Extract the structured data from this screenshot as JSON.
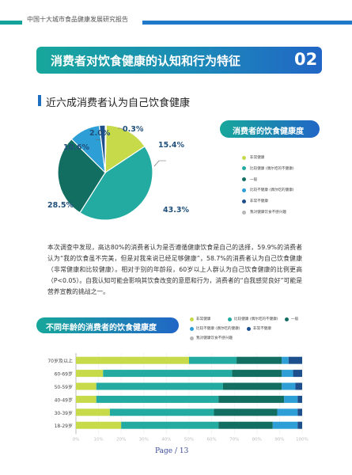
{
  "header": {
    "report_title": "中国十大城市食品健康发展研究报告"
  },
  "section": {
    "title": "消费者对饮食健康的认知和行为特征",
    "number": "02"
  },
  "subheading1": "近六成消费者认为自己饮食健康",
  "legend1": {
    "title": "消费者的饮食健康度",
    "items": [
      {
        "label": "非常健康",
        "color": "#c6da4a"
      },
      {
        "label": "比较健康 (偶尔吃的不健康)",
        "color": "#23aba2"
      },
      {
        "label": "一般",
        "color": "#136e62"
      },
      {
        "label": "比较不健康 (偶尔吃的健康)",
        "color": "#2e9ed6"
      },
      {
        "label": "非常不健康",
        "color": "#1c4f8c"
      },
      {
        "label": "我对健康饮食不感兴趣",
        "color": "#b7b7b7"
      }
    ]
  },
  "pie_labels": [
    "15.4%",
    "43.3%",
    "28.5%",
    "10.6%",
    "2.0%",
    "0.3%"
  ],
  "paragraph": "本次调查中发现，高达80%的消费者认为是否遵循健康饮食是自己的选择，59.9%的消费者认为“我的饮食虽不完美，但是对我来说已经足够健康”，58.7%的消费者认为自己饮食健康（非常健康和比较健康）。相对于别的年龄段，60岁以上人群认为自己饮食健康的比例更高（P<0.05）。自我认知可能会影响其饮食改变的意愿和行为，消费者的“自我感觉良好”可能是营养宣教的挑战之一。",
  "subheading2": "不同年龄的消费者的饮食健康度",
  "bar_legend": [
    {
      "label": "非常健康",
      "color": "#c6da4a"
    },
    {
      "label": "比较健康 (偶尔吃的不健康)",
      "color": "#23aba2"
    },
    {
      "label": "一般",
      "color": "#136e62"
    },
    {
      "label": "比较不健康 (偶尔吃的健康)",
      "color": "#2e9ed6"
    },
    {
      "label": "非常不健康",
      "color": "#1c4f8c"
    },
    {
      "label": "我对健康饮食不感兴趣",
      "color": "#b7b7b7"
    }
  ],
  "page_number": "Page / 13",
  "chart_data": [
    {
      "type": "pie",
      "title": "消费者的饮食健康度",
      "categories": [
        "非常健康",
        "比较健康 (偶尔吃的不健康)",
        "一般",
        "比较不健康 (偶尔吃的健康)",
        "非常不健康",
        "我对健康饮食不感兴趣"
      ],
      "values": [
        15.4,
        43.3,
        28.5,
        10.6,
        2.0,
        0.3
      ],
      "colors": [
        "#c6da4a",
        "#23aba2",
        "#136e62",
        "#2e9ed6",
        "#1c4f8c",
        "#b7b7b7"
      ]
    },
    {
      "type": "bar",
      "orientation": "horizontal",
      "stacked": true,
      "title": "不同年龄的消费者的饮食健康度",
      "categories": [
        "70岁及以上",
        "60-69岁",
        "50-59岁",
        "40-49岁",
        "30-39岁",
        "18-29岁"
      ],
      "xlim": [
        0,
        100
      ],
      "x_ticks": [
        "0%",
        "10%",
        "20%",
        "30%",
        "40%",
        "50%",
        "60%",
        "70%",
        "80%",
        "90%",
        "100%"
      ],
      "series": [
        {
          "name": "非常健康",
          "color": "#c6da4a",
          "values": [
            50,
            12,
            9,
            9,
            15,
            20
          ]
        },
        {
          "name": "比较健康 (偶尔吃的不健康)",
          "color": "#23aba2",
          "values": [
            21,
            57,
            56,
            54,
            46,
            43
          ]
        },
        {
          "name": "一般",
          "color": "#136e62",
          "values": [
            20,
            22,
            26,
            29,
            28,
            24
          ]
        },
        {
          "name": "比较不健康 (偶尔吃的健康)",
          "color": "#2e9ed6",
          "values": [
            3,
            5,
            6,
            6,
            9,
            11
          ]
        },
        {
          "name": "非常不健康",
          "color": "#1c4f8c",
          "values": [
            6,
            4,
            3,
            2,
            2,
            2
          ]
        }
      ]
    }
  ]
}
